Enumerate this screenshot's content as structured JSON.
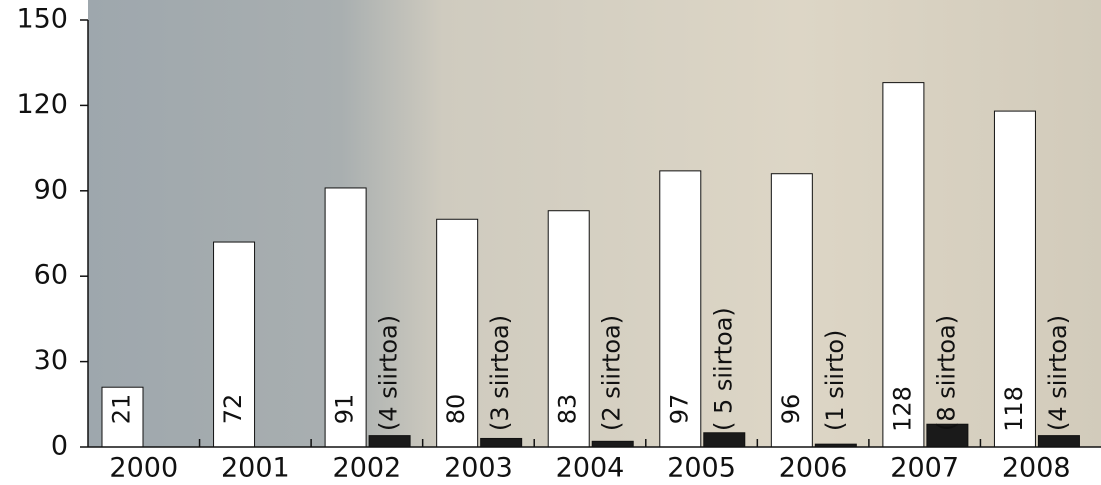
{
  "chart_data": {
    "type": "bar",
    "categories": [
      "2000",
      "2001",
      "2002",
      "2003",
      "2004",
      "2005",
      "2006",
      "2007",
      "2008"
    ],
    "series": [
      {
        "color": "#ffffff",
        "values": [
          21,
          72,
          91,
          80,
          83,
          97,
          96,
          128,
          118
        ]
      },
      {
        "color": "#1a1a1a",
        "values": [
          null,
          null,
          4,
          3,
          2,
          5,
          1,
          8,
          4
        ],
        "value_labels": [
          null,
          null,
          "(4 siirtoa)",
          "(3 siirtoa)",
          "(2 siirtoa)",
          "( 5 siirtoa)",
          "(1 siirto)",
          "(8 siirtoa)",
          "(4 siirtoa)"
        ]
      }
    ],
    "ylim": [
      0,
      150
    ],
    "yticks": [
      0,
      30,
      60,
      90,
      120,
      150
    ],
    "grid": false
  }
}
